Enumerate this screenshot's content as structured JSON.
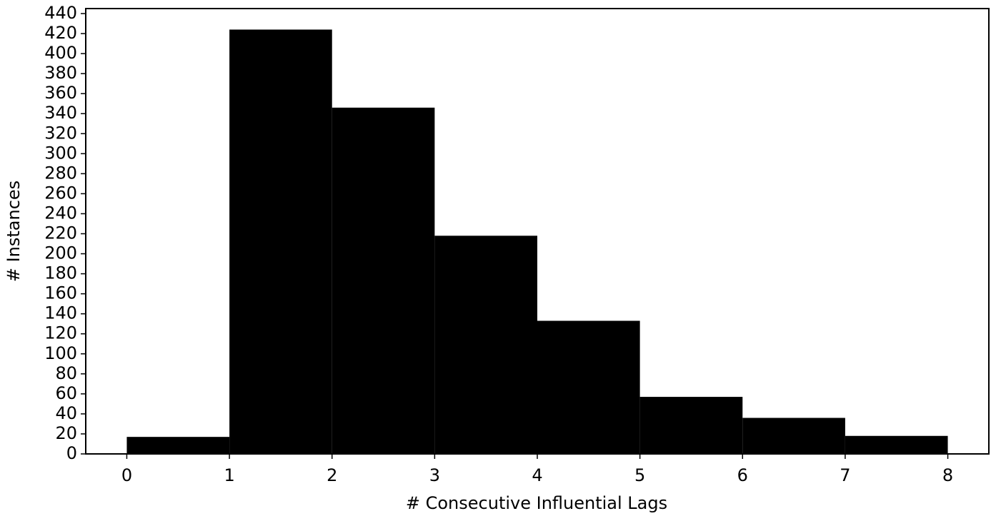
{
  "chart_data": {
    "type": "histogram",
    "xlabel": "# Consecutive Influential Lags",
    "ylabel": "# Instances",
    "bins": [
      0,
      1,
      2,
      3,
      4,
      5,
      6,
      7,
      8
    ],
    "values": [
      17,
      424,
      346,
      218,
      133,
      57,
      36,
      18
    ],
    "color": "#000000",
    "xlim": [
      -0.4,
      8.4
    ],
    "ylim": [
      0,
      445
    ],
    "xticks": [
      0,
      1,
      2,
      3,
      4,
      5,
      6,
      7,
      8
    ],
    "yticks": [
      0,
      20,
      40,
      60,
      80,
      100,
      120,
      140,
      160,
      180,
      200,
      220,
      240,
      260,
      280,
      300,
      320,
      340,
      360,
      380,
      400,
      420,
      440
    ],
    "grid": false
  }
}
